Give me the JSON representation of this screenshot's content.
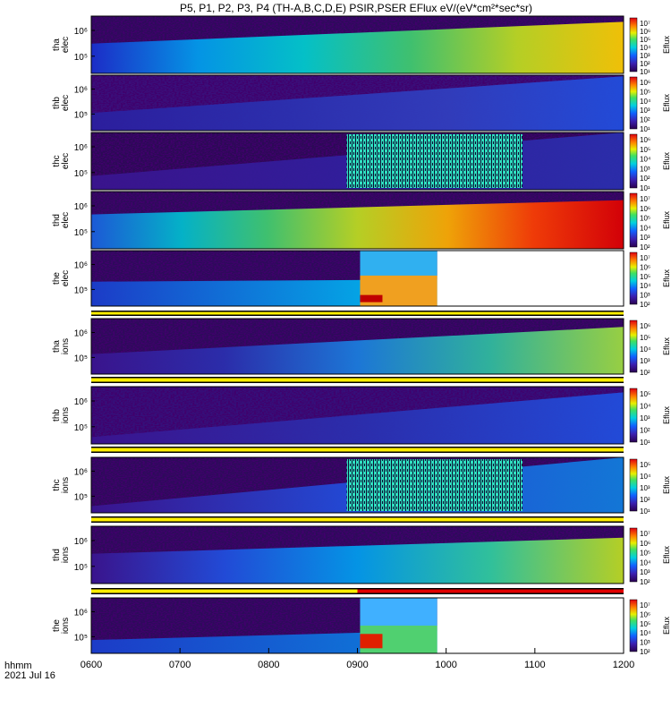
{
  "chart_data": {
    "type": "heatmap",
    "title": "P5, P1, P2, P3, P4 (TH-A,B,C,D,E) PSIR,PSER EFlux eV/(eV*cm²*sec*sr)",
    "x_axis": {
      "ticks": [
        "0600",
        "0700",
        "0800",
        "0900",
        "1000",
        "1100",
        "1200"
      ],
      "time_label": "hhmm",
      "date_label": "2021 Jul 16"
    },
    "colorbar_label": "Eflux",
    "panels": [
      {
        "probe": "tha",
        "species": "elec",
        "yticks": [
          "10⁶",
          "10⁵"
        ],
        "cbar_ticks": [
          "10⁷",
          "10⁶",
          "10⁵",
          "10⁴",
          "10³",
          "10²",
          "10¹"
        ],
        "has_flag_bar": false
      },
      {
        "probe": "thb",
        "species": "elec",
        "yticks": [
          "10⁶",
          "10⁵"
        ],
        "cbar_ticks": [
          "10⁶",
          "10⁵",
          "10⁴",
          "10³",
          "10²",
          "10¹"
        ],
        "has_flag_bar": false
      },
      {
        "probe": "thc",
        "species": "elec",
        "yticks": [
          "10⁶",
          "10⁵"
        ],
        "cbar_ticks": [
          "10⁶",
          "10⁵",
          "10⁴",
          "10³",
          "10²",
          "10¹"
        ],
        "has_flag_bar": false
      },
      {
        "probe": "thd",
        "species": "elec",
        "yticks": [
          "10⁶",
          "10⁵"
        ],
        "cbar_ticks": [
          "10⁷",
          "10⁶",
          "10⁵",
          "10⁴",
          "10³",
          "10²"
        ],
        "has_flag_bar": false
      },
      {
        "probe": "the",
        "species": "elec",
        "yticks": [
          "10⁶",
          "10⁵"
        ],
        "cbar_ticks": [
          "10⁷",
          "10⁶",
          "10⁵",
          "10⁴",
          "10³",
          "10²"
        ],
        "has_flag_bar": true
      },
      {
        "probe": "tha",
        "species": "ions",
        "yticks": [
          "10⁶",
          "10⁵"
        ],
        "cbar_ticks": [
          "10⁶",
          "10⁵",
          "10⁴",
          "10³",
          "10²"
        ],
        "has_flag_bar": true
      },
      {
        "probe": "thb",
        "species": "ions",
        "yticks": [
          "10⁶",
          "10⁵"
        ],
        "cbar_ticks": [
          "10⁵",
          "10⁴",
          "10³",
          "10²",
          "10¹"
        ],
        "has_flag_bar": true
      },
      {
        "probe": "thc",
        "species": "ions",
        "yticks": [
          "10⁶",
          "10⁵"
        ],
        "cbar_ticks": [
          "10⁵",
          "10⁴",
          "10³",
          "10²",
          "10¹"
        ],
        "has_flag_bar": true
      },
      {
        "probe": "thd",
        "species": "ions",
        "yticks": [
          "10⁶",
          "10⁵"
        ],
        "cbar_ticks": [
          "10⁷",
          "10⁶",
          "10⁵",
          "10⁴",
          "10³",
          "10²"
        ],
        "has_flag_bar": true
      },
      {
        "probe": "the",
        "species": "ions",
        "yticks": [
          "10⁶",
          "10⁵"
        ],
        "cbar_ticks": [
          "10⁷",
          "10⁶",
          "10⁵",
          "10⁴",
          "10³",
          "10²"
        ],
        "has_flag_bar": false
      }
    ]
  }
}
